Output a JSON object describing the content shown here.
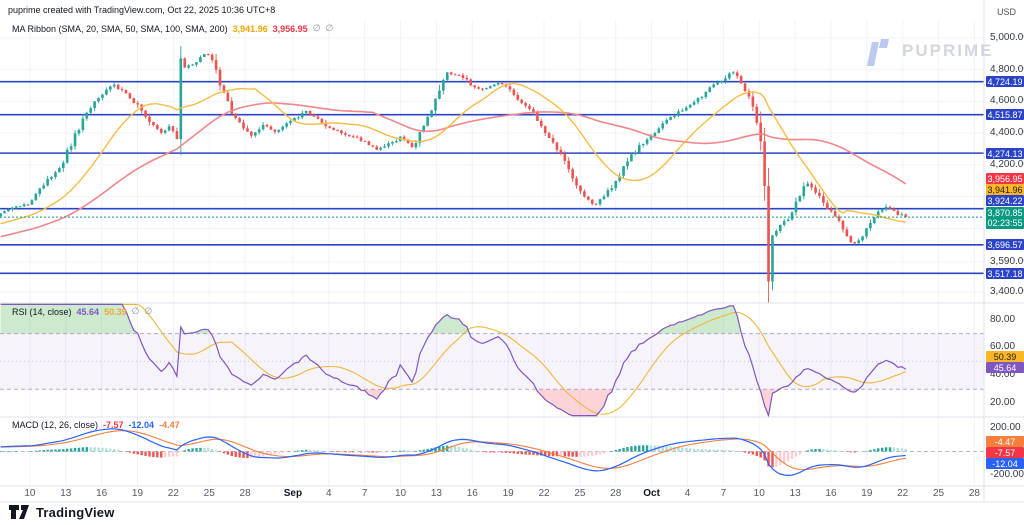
{
  "header": {
    "title": "puprime created with TradingView.com, Oct 22, 2025 10:36 UTC+8"
  },
  "watermark": {
    "brand": "PUPRIME"
  },
  "footer": {
    "brand": "TradingView"
  },
  "axis": {
    "currency": "USD"
  },
  "colors": {
    "up": "#26a69a",
    "down": "#ef5350",
    "sma20_line": "#f7bd45",
    "sma50_line": "#f2868b",
    "sma20_text": "#f7a600",
    "sma50_text": "#f23645",
    "level_blue": "#2b44c7",
    "last_price_green": "#089981",
    "rsi_purple": "#7e57c2",
    "rsi_ma_yellow": "#f0b73c",
    "macd_blue": "#2962ff",
    "macd_signal_orange": "#f5803e",
    "hist_pos": "#26a69a",
    "hist_pos_weak": "#b2dfdb",
    "hist_neg": "#ef5350",
    "hist_neg_weak": "#ffcdd2",
    "grid": "#f0f3fa",
    "divider": "#e0e3eb"
  },
  "chart_data": [
    {
      "pane": "main",
      "type": "candlestick",
      "legend": {
        "label": "MA Ribbon (SMA, 20, SMA, 50, SMA, 100, SMA, 200)",
        "sma20_value": "3,941.96",
        "sma50_value": "3,956.95",
        "hidden_marker": "∅"
      },
      "ylim": [
        3330,
        5100
      ],
      "y_ticks": [
        {
          "value": 5000,
          "label": "5,000.00"
        },
        {
          "value": 4800,
          "label": "4,800.00"
        },
        {
          "value": 4600,
          "label": "4,600.00"
        },
        {
          "value": 4400,
          "label": "4,400.00"
        },
        {
          "value": 4200,
          "label": "4,200.00"
        },
        {
          "value": 3590,
          "label": "3,590.00"
        },
        {
          "value": 3400,
          "label": "3,400.00"
        }
      ],
      "grid_levels": [
        5000,
        4800,
        4600,
        4400,
        4200,
        4000,
        3800,
        3590,
        3400
      ],
      "horizontal_levels": [
        {
          "price": 4724.19,
          "label": "4,724.19"
        },
        {
          "price": 4515.87,
          "label": "4,515.87"
        },
        {
          "price": 4274.13,
          "label": "4,274.13"
        },
        {
          "price": 3924.22,
          "label": "3,924.22"
        },
        {
          "price": 3696.57,
          "label": "3,696.57"
        },
        {
          "price": 3517.18,
          "label": "3,517.18"
        }
      ],
      "last_price": {
        "value": 3870.85,
        "label": "3,870.85",
        "countdown": "02:23:55"
      },
      "sma_axis_labels": [
        {
          "price": 3956.95,
          "label": "3,956.95",
          "bg": "#f23645",
          "fg": "#ffffff"
        },
        {
          "price": 3941.96,
          "label": "3,941.96",
          "bg": "#fcb525",
          "fg": "#1c1c1c"
        }
      ],
      "x_domain_days": [
        0,
        82.3
      ],
      "x_ticks": [
        {
          "t": 2.5,
          "label": "10"
        },
        {
          "t": 5.5,
          "label": "13"
        },
        {
          "t": 8.5,
          "label": "16"
        },
        {
          "t": 11.5,
          "label": "19"
        },
        {
          "t": 14.5,
          "label": "22"
        },
        {
          "t": 17.5,
          "label": "25"
        },
        {
          "t": 20.5,
          "label": "28"
        },
        {
          "t": 24.5,
          "label": "Sep",
          "bold": true
        },
        {
          "t": 27.5,
          "label": "4"
        },
        {
          "t": 30.5,
          "label": "7"
        },
        {
          "t": 33.5,
          "label": "10"
        },
        {
          "t": 36.5,
          "label": "13"
        },
        {
          "t": 39.5,
          "label": "16"
        },
        {
          "t": 42.5,
          "label": "19"
        },
        {
          "t": 45.5,
          "label": "22"
        },
        {
          "t": 48.5,
          "label": "25"
        },
        {
          "t": 51.5,
          "label": "28"
        },
        {
          "t": 54.5,
          "label": "Oct",
          "bold": true
        },
        {
          "t": 57.5,
          "label": "4"
        },
        {
          "t": 60.5,
          "label": "7"
        },
        {
          "t": 63.5,
          "label": "10"
        },
        {
          "t": 66.5,
          "label": "13"
        },
        {
          "t": 69.5,
          "label": "16"
        },
        {
          "t": 72.5,
          "label": "19"
        },
        {
          "t": 75.5,
          "label": "22"
        },
        {
          "t": 78.5,
          "label": "25"
        },
        {
          "t": 81.5,
          "label": "28"
        }
      ],
      "candle_count": 232,
      "price_path_keyframes": [
        [
          -20,
          3560
        ],
        [
          -12,
          3680
        ],
        [
          -6,
          3780
        ],
        [
          -2,
          3840
        ],
        [
          0,
          3890
        ],
        [
          1.2,
          3930
        ],
        [
          2.5,
          3960
        ],
        [
          3.5,
          4070
        ],
        [
          5,
          4180
        ],
        [
          5.5,
          4260
        ],
        [
          6.5,
          4420
        ],
        [
          7.5,
          4550
        ],
        [
          8.5,
          4650
        ],
        [
          9.5,
          4700
        ],
        [
          10.5,
          4660
        ],
        [
          11.5,
          4570
        ],
        [
          12.5,
          4470
        ],
        [
          13.5,
          4410
        ],
        [
          14.3,
          4440
        ],
        [
          14.8,
          4360
        ],
        [
          15.1,
          4800
        ],
        [
          16,
          4830
        ],
        [
          17.3,
          4900
        ],
        [
          17.8,
          4860
        ],
        [
          18.5,
          4680
        ],
        [
          19.5,
          4510
        ],
        [
          20.5,
          4420
        ],
        [
          21,
          4380
        ],
        [
          22,
          4450
        ],
        [
          23,
          4410
        ],
        [
          24.5,
          4480
        ],
        [
          25.5,
          4540
        ],
        [
          26.5,
          4500
        ],
        [
          27.5,
          4430
        ],
        [
          29,
          4390
        ],
        [
          30.5,
          4350
        ],
        [
          31.5,
          4290
        ],
        [
          32.5,
          4330
        ],
        [
          33.5,
          4370
        ],
        [
          34.5,
          4310
        ],
        [
          35.5,
          4450
        ],
        [
          36.5,
          4620
        ],
        [
          37.2,
          4780
        ],
        [
          38.5,
          4760
        ],
        [
          39.5,
          4700
        ],
        [
          40.5,
          4670
        ],
        [
          41.5,
          4720
        ],
        [
          42.5,
          4690
        ],
        [
          43.5,
          4600
        ],
        [
          44.5,
          4540
        ],
        [
          45.5,
          4420
        ],
        [
          46.5,
          4310
        ],
        [
          47.5,
          4180
        ],
        [
          48.2,
          4060
        ],
        [
          49,
          3990
        ],
        [
          49.8,
          3950
        ],
        [
          50.5,
          4010
        ],
        [
          51.5,
          4090
        ],
        [
          52.5,
          4230
        ],
        [
          53.5,
          4320
        ],
        [
          54.5,
          4380
        ],
        [
          55.5,
          4470
        ],
        [
          56.5,
          4520
        ],
        [
          57.5,
          4570
        ],
        [
          58.5,
          4620
        ],
        [
          59.5,
          4690
        ],
        [
          60.5,
          4740
        ],
        [
          61.2,
          4790
        ],
        [
          62,
          4720
        ],
        [
          62.8,
          4600
        ],
        [
          63.4,
          4450
        ],
        [
          63.9,
          4150
        ],
        [
          64.15,
          3470
        ],
        [
          64.5,
          3740
        ],
        [
          65.2,
          3810
        ],
        [
          66,
          3870
        ],
        [
          66.8,
          4000
        ],
        [
          67.5,
          4090
        ],
        [
          68.2,
          4030
        ],
        [
          69,
          3950
        ],
        [
          69.8,
          3880
        ],
        [
          70.6,
          3790
        ],
        [
          71.4,
          3700
        ],
        [
          72,
          3730
        ],
        [
          72.6,
          3820
        ],
        [
          73.4,
          3890
        ],
        [
          74.2,
          3950
        ],
        [
          74.8,
          3900
        ],
        [
          75.4,
          3880
        ],
        [
          75.7,
          3870.85
        ]
      ]
    },
    {
      "pane": "rsi",
      "type": "line",
      "legend": {
        "label": "RSI (14, close)",
        "value": "45.64",
        "ma_value": "50.39",
        "hidden_marker": "∅"
      },
      "value": 45.64,
      "ma_value": 50.39,
      "period": 14,
      "band": [
        30,
        70
      ],
      "mid": 50,
      "ylim": [
        10,
        92
      ],
      "y_ticks": [
        {
          "value": 80,
          "label": "80.00"
        },
        {
          "value": 60,
          "label": "60.00"
        },
        {
          "value": 40,
          "label": "40.00"
        },
        {
          "value": 20,
          "label": "20.00"
        }
      ]
    },
    {
      "pane": "macd",
      "type": "macd",
      "legend": {
        "label": "MACD (12, 26, close)",
        "histogram": "-7.57",
        "macd": "-12.04",
        "signal": "-4.47"
      },
      "histogram_value": -7.57,
      "macd_value": -12.04,
      "signal_value": -4.47,
      "params": [
        12,
        26,
        9
      ],
      "ylim": [
        -290,
        290
      ],
      "y_ticks": [
        {
          "value": 200,
          "label": "200.00"
        },
        {
          "value": -200,
          "label": "-200.00"
        }
      ]
    }
  ]
}
